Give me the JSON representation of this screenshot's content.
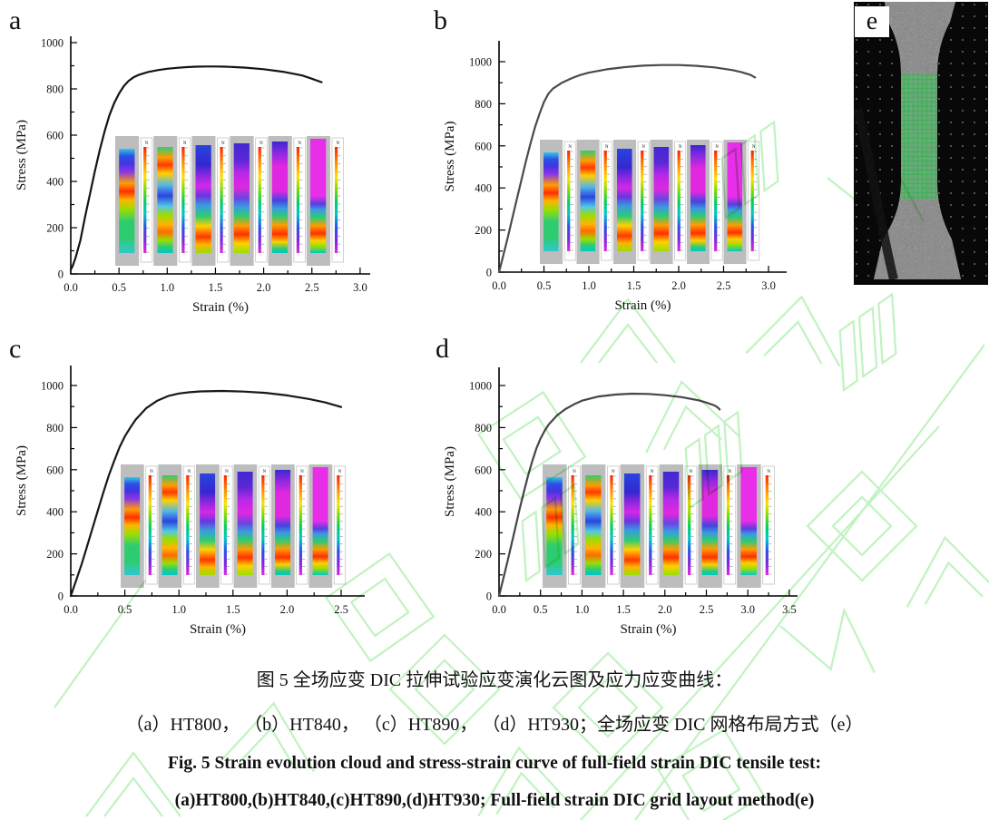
{
  "figure": {
    "panels": [
      {
        "letter": "a",
        "sample": "HT800"
      },
      {
        "letter": "b",
        "sample": "HT840"
      },
      {
        "letter": "c",
        "sample": "HT890"
      },
      {
        "letter": "d",
        "sample": "HT930"
      },
      {
        "letter": "e",
        "sample": "DIC grid layout"
      }
    ],
    "caption": {
      "zh_line1": "图 5 全场应变 DIC 拉伸试验应变演化云图及应力应变曲线：",
      "zh_line2": "（a）HT800， （b）HT840， （c）HT890， （d）HT930；全场应变 DIC 网格布局方式（e）",
      "en_line1": "Fig. 5 Strain evolution cloud and stress-strain curve of full-field strain DIC tensile test:",
      "en_line2": "(a)HT800,(b)HT840,(c)HT890,(d)HT930; Full-field strain DIC grid layout method(e)"
    },
    "watermark_color": "#8fe88f"
  },
  "chart_data": [
    {
      "id": "a",
      "type": "line",
      "sample": "HT800",
      "title": "",
      "xlabel": "Strain (%)",
      "ylabel": "Stress (MPa)",
      "xlim": [
        0,
        3.0
      ],
      "ylim": [
        0,
        1000
      ],
      "xticks": [
        0.0,
        0.5,
        1.0,
        1.5,
        2.0,
        2.5,
        3.0
      ],
      "yticks": [
        0,
        200,
        400,
        600,
        800,
        1000
      ],
      "legend": "none",
      "grid": false,
      "series": [
        {
          "name": "stress-strain curve",
          "x": [
            0,
            0.02,
            0.05,
            0.1,
            0.15,
            0.2,
            0.25,
            0.3,
            0.35,
            0.4,
            0.45,
            0.5,
            0.55,
            0.6,
            0.65,
            0.7,
            0.8,
            0.9,
            1.0,
            1.1,
            1.2,
            1.3,
            1.4,
            1.5,
            1.6,
            1.8,
            2.0,
            2.2,
            2.4,
            2.5,
            2.6
          ],
          "y": [
            18,
            35,
            70,
            145,
            250,
            348,
            445,
            535,
            615,
            685,
            738,
            780,
            812,
            835,
            850,
            860,
            873,
            881,
            887,
            891,
            894,
            896,
            897,
            897,
            896,
            892,
            885,
            874,
            858,
            844,
            829
          ]
        }
      ],
      "insets_count": 6
    },
    {
      "id": "b",
      "type": "line",
      "sample": "HT840",
      "title": "",
      "xlabel": "Strain (%)",
      "ylabel": "Stress (MPa)",
      "xlim": [
        0,
        3.0
      ],
      "ylim": [
        0,
        1000
      ],
      "xticks": [
        0.0,
        0.5,
        1.0,
        1.5,
        2.0,
        2.5,
        3.0
      ],
      "yticks": [
        0,
        200,
        400,
        600,
        800,
        1000
      ],
      "legend": "none",
      "grid": false,
      "series": [
        {
          "name": "stress-strain curve",
          "x": [
            0,
            0.05,
            0.1,
            0.15,
            0.2,
            0.25,
            0.3,
            0.35,
            0.4,
            0.45,
            0.5,
            0.55,
            0.6,
            0.7,
            0.8,
            0.9,
            1.0,
            1.2,
            1.4,
            1.6,
            1.8,
            2.0,
            2.2,
            2.4,
            2.6,
            2.7,
            2.8,
            2.85
          ],
          "y": [
            0,
            85,
            170,
            260,
            350,
            440,
            528,
            612,
            688,
            752,
            808,
            848,
            872,
            900,
            920,
            936,
            948,
            964,
            974,
            981,
            984,
            984,
            980,
            973,
            960,
            950,
            937,
            925
          ]
        }
      ],
      "insets_count": 6
    },
    {
      "id": "c",
      "type": "line",
      "sample": "HT890",
      "title": "",
      "xlabel": "Strain (%)",
      "ylabel": "Stress (MPa)",
      "xlim": [
        0,
        2.5
      ],
      "ylim": [
        0,
        1000
      ],
      "xticks": [
        0.0,
        0.5,
        1.0,
        1.5,
        2.0,
        2.5
      ],
      "yticks": [
        0,
        200,
        400,
        600,
        800,
        1000
      ],
      "legend": "none",
      "grid": false,
      "series": [
        {
          "name": "stress-strain curve",
          "x": [
            0,
            0.05,
            0.1,
            0.15,
            0.2,
            0.25,
            0.3,
            0.35,
            0.4,
            0.45,
            0.5,
            0.55,
            0.6,
            0.7,
            0.8,
            0.9,
            1.0,
            1.1,
            1.2,
            1.4,
            1.6,
            1.8,
            2.0,
            2.2,
            2.35,
            2.5
          ],
          "y": [
            0,
            75,
            150,
            235,
            320,
            405,
            490,
            570,
            640,
            705,
            758,
            800,
            838,
            893,
            928,
            950,
            962,
            968,
            972,
            974,
            971,
            965,
            953,
            936,
            920,
            898
          ]
        }
      ],
      "insets_count": 6
    },
    {
      "id": "d",
      "type": "line",
      "sample": "HT930",
      "title": "",
      "xlabel": "Strain (%)",
      "ylabel": "Stress (MPa)",
      "xlim": [
        0,
        3.5
      ],
      "ylim": [
        0,
        1000
      ],
      "xticks": [
        0.0,
        0.5,
        1.0,
        1.5,
        2.0,
        2.5,
        3.0,
        3.5
      ],
      "yticks": [
        0,
        200,
        400,
        600,
        800,
        1000
      ],
      "legend": "none",
      "grid": false,
      "series": [
        {
          "name": "stress-strain curve",
          "x": [
            0,
            0.05,
            0.1,
            0.15,
            0.2,
            0.25,
            0.3,
            0.35,
            0.4,
            0.45,
            0.5,
            0.55,
            0.6,
            0.7,
            0.8,
            0.9,
            1.0,
            1.2,
            1.4,
            1.6,
            1.8,
            2.0,
            2.2,
            2.4,
            2.5,
            2.6,
            2.64,
            2.66
          ],
          "y": [
            0,
            80,
            160,
            245,
            330,
            415,
            495,
            572,
            640,
            700,
            748,
            785,
            815,
            858,
            888,
            910,
            928,
            948,
            957,
            961,
            960,
            954,
            945,
            930,
            919,
            905,
            895,
            886
          ]
        }
      ],
      "insets_count": 6
    }
  ],
  "dic_insets": {
    "colorbar_label": "N",
    "colorbar_stops": [
      "#ff2000 0%",
      "#ff8c00 15%",
      "#ffe000 28%",
      "#7adc00 40%",
      "#00cc66 52%",
      "#00c8c8 63%",
      "#2b50e8 76%",
      "#7a28e0 88%",
      "#e028e0 100%"
    ],
    "stage_top_offsets": [
      14,
      12,
      10,
      8,
      6,
      3
    ],
    "stage_gradients": [
      [
        "#35c8e8 0%",
        "#2b50e8 7%",
        "#4334e0 14%",
        "#8a35e8 22%",
        "#ff9d00 33%",
        "#ff3000 41%",
        "#ffb400 49%",
        "#9ade00 58%",
        "#2ecc71 70%",
        "#2ecc71 86%",
        "#30c8d0 100%"
      ],
      [
        "#2ecc71 0%",
        "#ff9d00 10%",
        "#ff3800 17%",
        "#ffd000 25%",
        "#52b8e8 36%",
        "#2b44e0 46%",
        "#52c8e8 56%",
        "#9ade00 64%",
        "#ffb400 73%",
        "#ff6a00 80%",
        "#9ade00 88%",
        "#2ecc71 94%",
        "#00c8c8 100%"
      ],
      [
        "#2b44e0 0%",
        "#3328d0 18%",
        "#8a28e0 28%",
        "#d428e8 38%",
        "#6a35e0 47%",
        "#3a9be0 56%",
        "#2ecc71 66%",
        "#ffd000 75%",
        "#ff3800 85%",
        "#ffb400 92%",
        "#9ade00 100%"
      ],
      [
        "#4328d0 0%",
        "#5a28d8 15%",
        "#b828e8 27%",
        "#e028e0 40%",
        "#6a44e0 50%",
        "#3a9be0 58%",
        "#2ecc71 66%",
        "#ff9d00 75%",
        "#ff3000 83%",
        "#ffd000 91%",
        "#9ade00 100%"
      ],
      [
        "#3a28d0 0%",
        "#8a28e0 10%",
        "#e028e0 22%",
        "#e028e0 44%",
        "#4344e0 53%",
        "#3a9be0 60%",
        "#2ecc71 67%",
        "#ff9d00 75%",
        "#ff3000 83%",
        "#ffd000 90%",
        "#2ecc71 96%",
        "#00c8c8 100%"
      ],
      [
        "#e82ee8 0%",
        "#e82ee8 50%",
        "#5a3ce0 57%",
        "#3a9be0 62%",
        "#2ecc71 69%",
        "#ff9d00 76%",
        "#ff3000 83%",
        "#ffd000 89%",
        "#9ade00 94%",
        "#00c8c8 100%"
      ]
    ]
  }
}
